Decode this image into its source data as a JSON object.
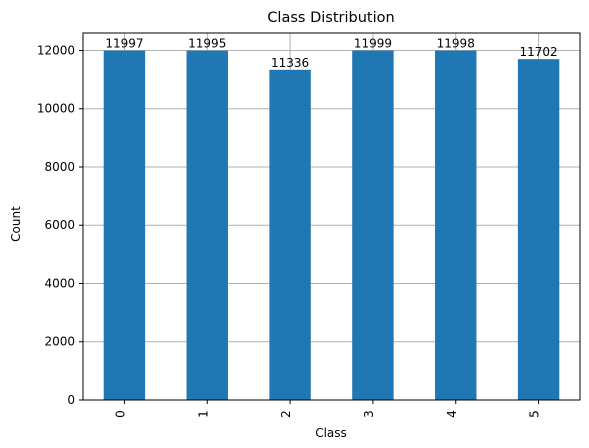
{
  "chart_data": {
    "type": "bar",
    "title": "Class Distribution",
    "xlabel": "Class",
    "ylabel": "Count",
    "categories": [
      "0",
      "1",
      "2",
      "3",
      "4",
      "5"
    ],
    "values": [
      11997,
      11995,
      11336,
      11999,
      11998,
      11702
    ],
    "data_labels": [
      "11997",
      "11995",
      "11336",
      "11999",
      "11998",
      "11702"
    ],
    "yticks": [
      0,
      2000,
      4000,
      6000,
      8000,
      10000,
      12000
    ],
    "ytick_labels": [
      "0",
      "2000",
      "4000",
      "6000",
      "8000",
      "10000",
      "12000"
    ],
    "ylim": [
      0,
      12599.95
    ],
    "grid": true,
    "legend": "none",
    "colors": {
      "bar": "#1f77b4",
      "grid": "#b0b0b0",
      "axis": "#000000",
      "background": "#ffffff"
    }
  }
}
